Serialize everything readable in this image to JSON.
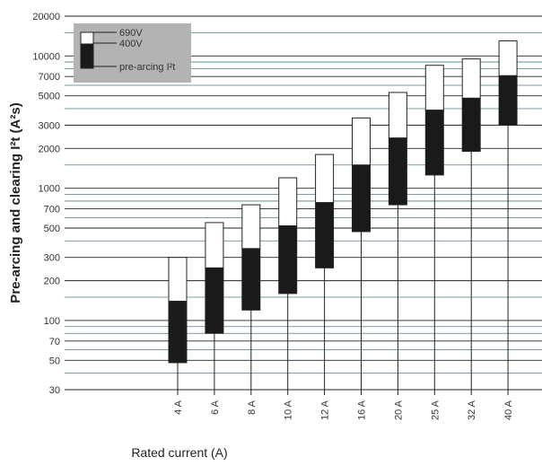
{
  "chart_data": {
    "type": "floating-bar",
    "y_label": "Pre-arcing and clearing I²t (A²s)",
    "x_label": "Rated current (A)",
    "categories": [
      "4 A",
      "6 A",
      "8 A",
      "10 A",
      "12 A",
      "16 A",
      "20 A",
      "25 A",
      "32 A",
      "40 A"
    ],
    "series": [
      {
        "name": "690V",
        "color": "#ffffff",
        "values": [
          300,
          550,
          750,
          1200,
          1800,
          3400,
          5300,
          8500,
          9500,
          13000
        ]
      },
      {
        "name": "400V",
        "color": "#1a1a1a",
        "values": [
          140,
          250,
          350,
          520,
          780,
          1500,
          2400,
          3900,
          4800,
          7100
        ]
      },
      {
        "name": "pre-arcing I²t",
        "color": "#1a1a1a",
        "values": [
          48,
          80,
          120,
          160,
          250,
          470,
          750,
          1260,
          1900,
          3000
        ]
      }
    ],
    "log_y": true,
    "ylim": [
      30,
      20000
    ],
    "yticks": [
      30,
      50,
      70,
      100,
      200,
      300,
      500,
      700,
      1000,
      2000,
      3000,
      5000,
      7000,
      10000,
      20000
    ],
    "yminor": [
      40,
      60,
      80,
      90,
      150,
      400,
      600,
      800,
      900,
      1500,
      4000,
      6000,
      8000,
      9000,
      15000
    ],
    "grid": true,
    "legend": "top-left"
  }
}
